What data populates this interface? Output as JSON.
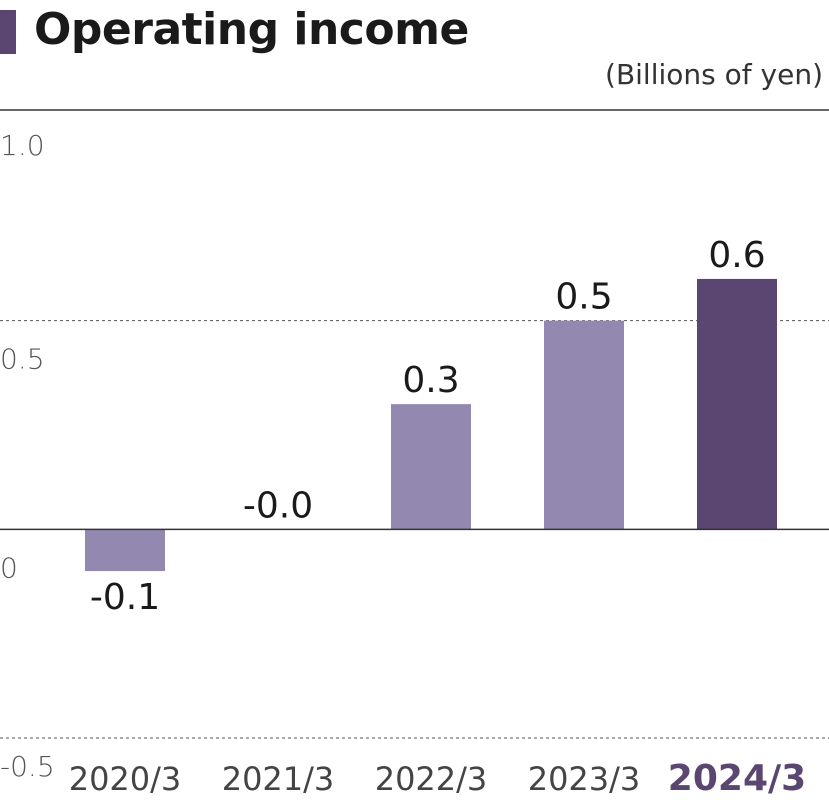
{
  "title": "Operating income",
  "unit_label": "(Billions of yen)",
  "colors": {
    "bar": "#9389b0",
    "highlight_bar": "#5a4670",
    "title_accent": "#5a4670",
    "text": "#1a1a1a",
    "highlight_label": "#5a4670"
  },
  "chart_data": {
    "type": "bar",
    "title": "Operating income",
    "ylabel": "(Billions of yen)",
    "categories": [
      "2020/3",
      "2021/3",
      "2022/3",
      "2023/3",
      "2024/3"
    ],
    "values": [
      -0.1,
      -0.0,
      0.3,
      0.5,
      0.6
    ],
    "value_labels": [
      "-0.1",
      "-0.0",
      "0.3",
      "0.5",
      "0.6"
    ],
    "highlight_index": 4,
    "ylim": [
      -0.5,
      1.0
    ],
    "yticks": [
      1.0,
      0.5,
      0,
      -0.5
    ],
    "ytick_labels": [
      "1.0",
      "0.5",
      "0",
      "-0.5"
    ],
    "grid": "dashed at 0.5 and -0.5",
    "legend": "none"
  }
}
